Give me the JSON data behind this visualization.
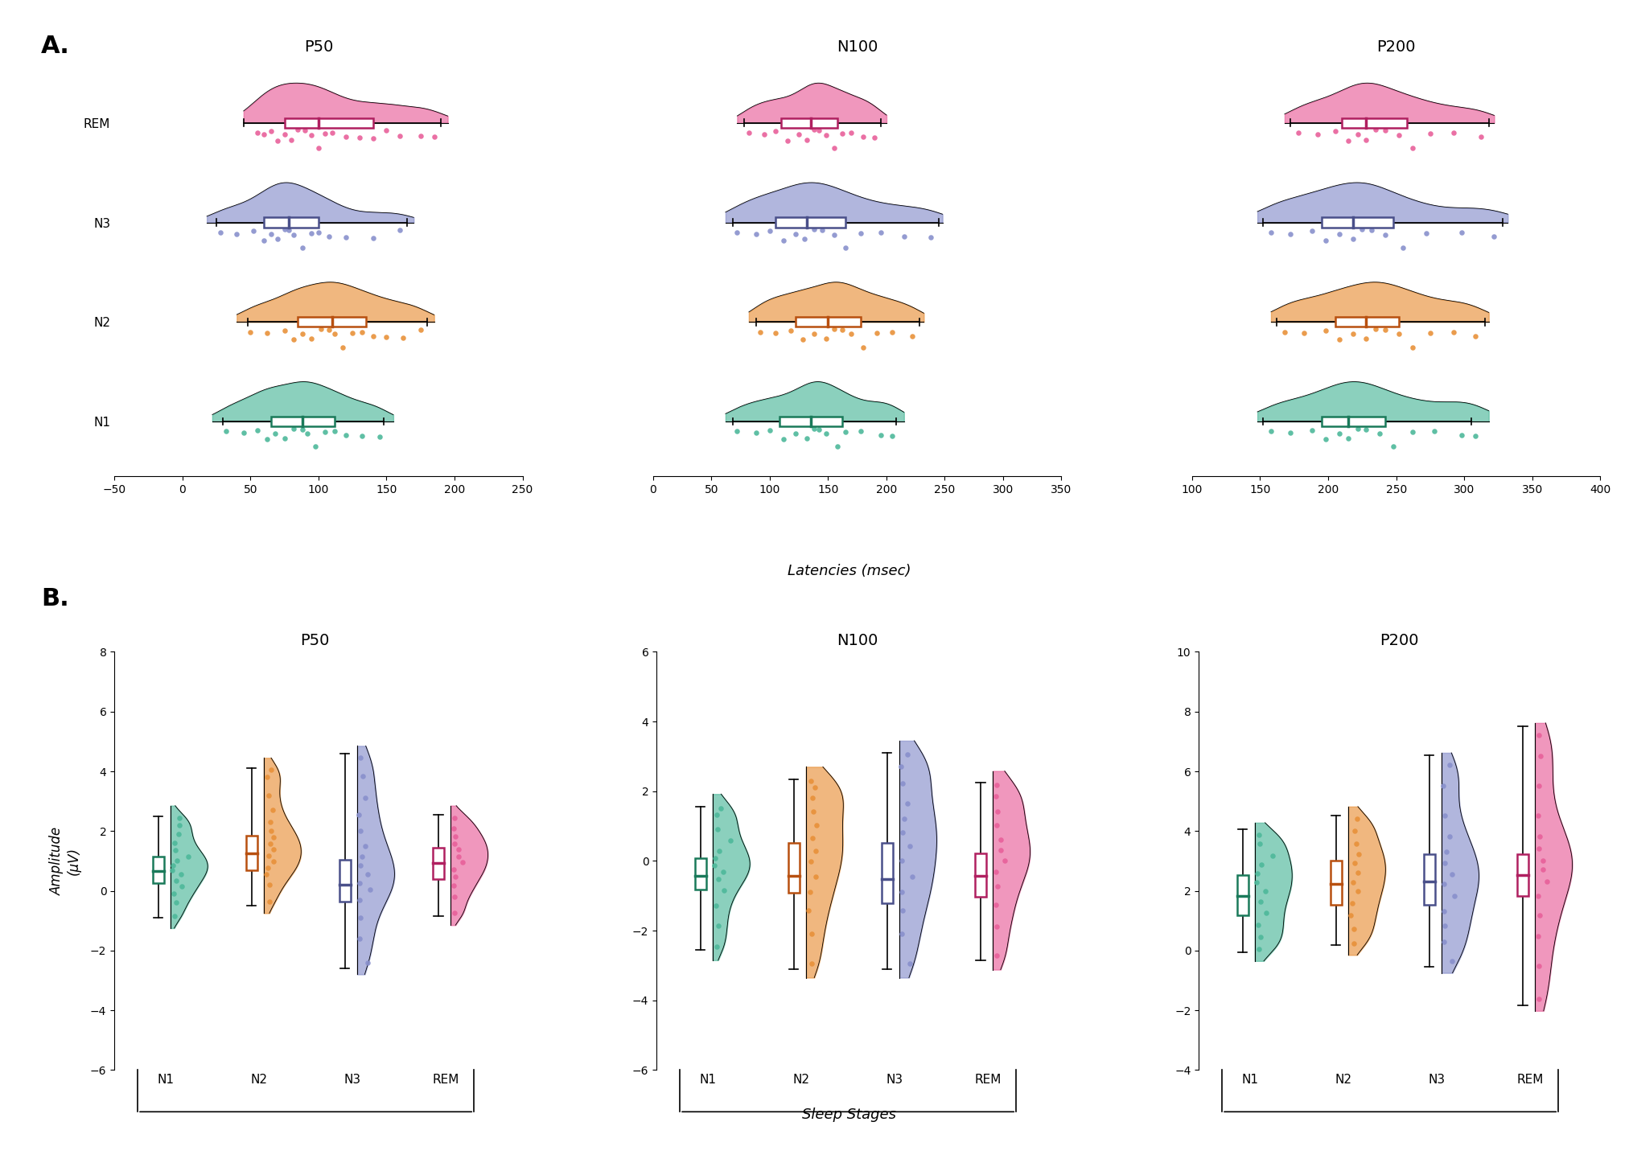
{
  "stage_colors": {
    "N1": "#4DB89A",
    "N2": "#E8913A",
    "N3": "#8890CC",
    "REM": "#E8609A"
  },
  "box_edge_colors": {
    "N1": "#1A7A5A",
    "N2": "#B85010",
    "N3": "#4A508A",
    "REM": "#B02060"
  },
  "panel_A": {
    "subplots": [
      "P50",
      "N100",
      "P200"
    ],
    "P50": {
      "xlim": [
        -50,
        250
      ],
      "xticks": [
        -50,
        0,
        50,
        100,
        150,
        200,
        250
      ],
      "REM": {
        "q1": 75,
        "median": 100,
        "q3": 140,
        "wlo": 45,
        "whi": 190,
        "pts": [
          55,
          60,
          65,
          70,
          75,
          80,
          85,
          90,
          95,
          100,
          105,
          110,
          120,
          130,
          140,
          150,
          160,
          175,
          185
        ]
      },
      "N3": {
        "q1": 60,
        "median": 78,
        "q3": 100,
        "wlo": 25,
        "whi": 165,
        "pts": [
          28,
          40,
          52,
          60,
          65,
          70,
          75,
          78,
          82,
          88,
          95,
          100,
          108,
          120,
          140,
          160
        ]
      },
      "N2": {
        "q1": 85,
        "median": 110,
        "q3": 135,
        "wlo": 48,
        "whi": 180,
        "pts": [
          50,
          62,
          75,
          82,
          88,
          95,
          102,
          108,
          112,
          118,
          125,
          132,
          140,
          150,
          162,
          175
        ]
      },
      "N1": {
        "q1": 65,
        "median": 88,
        "q3": 112,
        "wlo": 30,
        "whi": 148,
        "pts": [
          32,
          45,
          55,
          62,
          68,
          75,
          82,
          88,
          92,
          98,
          105,
          112,
          120,
          132,
          145
        ]
      }
    },
    "N100": {
      "xlim": [
        0,
        350
      ],
      "xticks": [
        0,
        50,
        100,
        150,
        200,
        250,
        300,
        350
      ],
      "REM": {
        "q1": 110,
        "median": 135,
        "q3": 158,
        "wlo": 78,
        "whi": 195,
        "pts": [
          82,
          95,
          105,
          115,
          125,
          132,
          138,
          142,
          148,
          155,
          162,
          170,
          180,
          190
        ]
      },
      "N3": {
        "q1": 105,
        "median": 132,
        "q3": 165,
        "wlo": 68,
        "whi": 245,
        "pts": [
          72,
          88,
          100,
          112,
          122,
          130,
          138,
          145,
          155,
          165,
          178,
          195,
          215,
          238
        ]
      },
      "N2": {
        "q1": 122,
        "median": 150,
        "q3": 178,
        "wlo": 88,
        "whi": 228,
        "pts": [
          92,
          105,
          118,
          128,
          138,
          148,
          155,
          162,
          170,
          180,
          192,
          205,
          222
        ]
      },
      "N1": {
        "q1": 108,
        "median": 135,
        "q3": 162,
        "wlo": 68,
        "whi": 208,
        "pts": [
          72,
          88,
          100,
          112,
          122,
          132,
          138,
          142,
          148,
          158,
          165,
          178,
          195,
          205
        ]
      }
    },
    "P200": {
      "xlim": [
        100,
        400
      ],
      "xticks": [
        100,
        150,
        200,
        250,
        300,
        350,
        400
      ],
      "REM": {
        "q1": 210,
        "median": 228,
        "q3": 258,
        "wlo": 172,
        "whi": 318,
        "pts": [
          178,
          192,
          205,
          215,
          222,
          228,
          235,
          242,
          252,
          262,
          275,
          292,
          312
        ]
      },
      "N3": {
        "q1": 195,
        "median": 218,
        "q3": 248,
        "wlo": 152,
        "whi": 328,
        "pts": [
          158,
          172,
          188,
          198,
          208,
          218,
          225,
          232,
          242,
          255,
          272,
          298,
          322
        ]
      },
      "N2": {
        "q1": 205,
        "median": 228,
        "q3": 252,
        "wlo": 162,
        "whi": 315,
        "pts": [
          168,
          182,
          198,
          208,
          218,
          228,
          235,
          242,
          252,
          262,
          275,
          292,
          308
        ]
      },
      "N1": {
        "q1": 195,
        "median": 215,
        "q3": 242,
        "wlo": 152,
        "whi": 305,
        "pts": [
          158,
          172,
          188,
          198,
          208,
          215,
          222,
          228,
          238,
          248,
          262,
          278,
          298,
          308
        ]
      }
    }
  },
  "panel_B": {
    "subplots": [
      "P50",
      "N100",
      "P200"
    ],
    "P50": {
      "ylim": [
        -6,
        8
      ],
      "yticks": [
        -6,
        -4,
        -2,
        0,
        2,
        4,
        6,
        8
      ],
      "N1": {
        "q1": 0.25,
        "median": 0.65,
        "q3": 1.15,
        "wlo": -0.9,
        "whi": 2.5,
        "pts": [
          -0.85,
          -0.4,
          -0.1,
          0.15,
          0.35,
          0.55,
          0.7,
          0.85,
          1.0,
          1.15,
          1.35,
          1.6,
          1.9,
          2.2,
          2.45
        ]
      },
      "N2": {
        "q1": 0.7,
        "median": 1.25,
        "q3": 1.85,
        "wlo": -0.5,
        "whi": 4.1,
        "pts": [
          -0.35,
          0.2,
          0.55,
          0.78,
          0.98,
          1.18,
          1.38,
          1.58,
          1.78,
          2.0,
          2.3,
          2.7,
          3.2,
          3.8,
          4.05
        ]
      },
      "N3": {
        "q1": -0.35,
        "median": 0.2,
        "q3": 1.05,
        "wlo": -2.6,
        "whi": 4.6,
        "pts": [
          -2.4,
          -1.6,
          -0.9,
          -0.3,
          0.05,
          0.25,
          0.55,
          0.85,
          1.15,
          1.5,
          2.0,
          2.55,
          3.1,
          3.85,
          4.45
        ]
      },
      "REM": {
        "q1": 0.38,
        "median": 0.92,
        "q3": 1.45,
        "wlo": -0.85,
        "whi": 2.55,
        "pts": [
          -0.75,
          -0.2,
          0.18,
          0.48,
          0.72,
          0.95,
          1.15,
          1.38,
          1.58,
          1.82,
          2.1,
          2.45
        ]
      }
    },
    "N100": {
      "ylim": [
        -6,
        6
      ],
      "yticks": [
        -6,
        -4,
        -2,
        0,
        2,
        4,
        6
      ],
      "N1": {
        "q1": -0.82,
        "median": -0.42,
        "q3": 0.08,
        "wlo": -2.55,
        "whi": 1.55,
        "pts": [
          -2.45,
          -1.85,
          -1.28,
          -0.85,
          -0.52,
          -0.32,
          -0.12,
          0.08,
          0.28,
          0.58,
          0.92,
          1.32,
          1.52
        ]
      },
      "N2": {
        "q1": -0.92,
        "median": -0.42,
        "q3": 0.52,
        "wlo": -3.1,
        "whi": 2.35,
        "pts": [
          -2.95,
          -2.1,
          -1.42,
          -0.88,
          -0.45,
          -0.02,
          0.28,
          0.65,
          1.02,
          1.42,
          1.82,
          2.12,
          2.3
        ]
      },
      "N3": {
        "q1": -1.22,
        "median": -0.52,
        "q3": 0.52,
        "wlo": -3.1,
        "whi": 3.1,
        "pts": [
          -2.95,
          -2.1,
          -1.42,
          -0.88,
          -0.45,
          0.02,
          0.42,
          0.82,
          1.22,
          1.65,
          2.22,
          2.72,
          3.05
        ]
      },
      "REM": {
        "q1": -1.02,
        "median": -0.42,
        "q3": 0.22,
        "wlo": -2.85,
        "whi": 2.25,
        "pts": [
          -2.72,
          -1.88,
          -1.25,
          -0.72,
          -0.32,
          0.02,
          0.32,
          0.62,
          1.02,
          1.42,
          1.85,
          2.18
        ]
      }
    },
    "P200": {
      "ylim": [
        -4,
        10
      ],
      "yticks": [
        -4,
        -2,
        0,
        2,
        4,
        6,
        8,
        10
      ],
      "N1": {
        "q1": 1.18,
        "median": 1.82,
        "q3": 2.52,
        "wlo": -0.05,
        "whi": 4.05,
        "pts": [
          0.05,
          0.45,
          0.85,
          1.25,
          1.65,
          1.98,
          2.28,
          2.58,
          2.88,
          3.18,
          3.58,
          3.88
        ]
      },
      "N2": {
        "q1": 1.52,
        "median": 2.22,
        "q3": 3.02,
        "wlo": 0.18,
        "whi": 4.52,
        "pts": [
          0.25,
          0.72,
          1.18,
          1.58,
          1.98,
          2.28,
          2.62,
          2.92,
          3.22,
          3.58,
          4.02,
          4.42
        ]
      },
      "N3": {
        "q1": 1.52,
        "median": 2.32,
        "q3": 3.22,
        "wlo": -0.55,
        "whi": 6.55,
        "pts": [
          -0.35,
          0.28,
          0.82,
          1.32,
          1.82,
          2.22,
          2.55,
          2.92,
          3.32,
          3.82,
          4.52,
          5.52,
          6.22
        ]
      },
      "REM": {
        "q1": 1.82,
        "median": 2.52,
        "q3": 3.22,
        "wlo": -1.85,
        "whi": 7.52,
        "pts": [
          -1.62,
          -0.52,
          0.48,
          1.18,
          1.82,
          2.32,
          2.72,
          3.02,
          3.42,
          3.82,
          4.52,
          5.52,
          6.52,
          7.22
        ]
      }
    }
  },
  "xlabel_A": "Latencies (msec)",
  "xlabel_B": "Sleep Stages",
  "ylabel_B": "Amplitude\n(μV)"
}
